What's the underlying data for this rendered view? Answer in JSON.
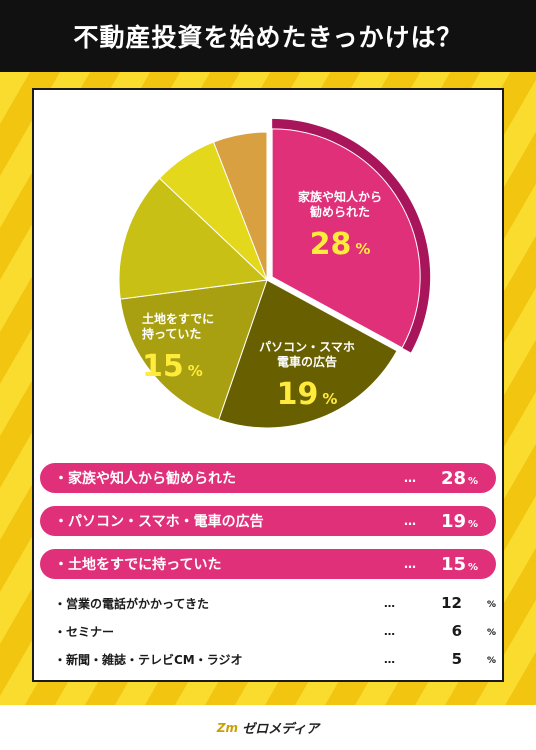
{
  "header": {
    "title": "不動産投資を始めたきっかけは？"
  },
  "chart_data": {
    "type": "pie",
    "title": "不動産投資を始めたきっかけは？",
    "unit": "%",
    "slices": [
      {
        "label": "家族や知人から勧められた",
        "label_lines": [
          "家族や知人から",
          "勧められた"
        ],
        "value": 28,
        "color": "#e0307a",
        "exploded": true
      },
      {
        "label": "パソコン・スマホ・電車の広告",
        "label_lines": [
          "パソコン・スマホ",
          "電車の広告"
        ],
        "value": 19,
        "color": "#686000"
      },
      {
        "label": "土地をすでに持っていた",
        "label_lines": [
          "土地をすでに",
          "持っていた"
        ],
        "value": 15,
        "color": "#a8a010"
      },
      {
        "label": "営業の電話がかかってきた",
        "value": 12,
        "color": "#c8c014"
      },
      {
        "label": "セミナー",
        "value": 6,
        "color": "#e3d81c"
      },
      {
        "label": "新聞・雑誌・テレビCM・ラジオ",
        "value": 5,
        "color": "#d8a040"
      }
    ]
  },
  "ranking": {
    "dots": "…",
    "percent_sign": "%",
    "items": [
      {
        "label": "・家族や知人から勧められた",
        "value": "28"
      },
      {
        "label": "・パソコン・スマホ・電車の広告",
        "value": "19"
      },
      {
        "label": "・土地をすでに持っていた",
        "value": "15"
      },
      {
        "label": "・営業の電話がかかってきた",
        "value": "12"
      },
      {
        "label": "・セミナー",
        "value": "6"
      },
      {
        "label": "・新聞・雑誌・テレビCM・ラジオ",
        "value": "5"
      }
    ]
  },
  "footer": {
    "logo_mark": "Zm",
    "logo_text": "ゼロメディア"
  }
}
